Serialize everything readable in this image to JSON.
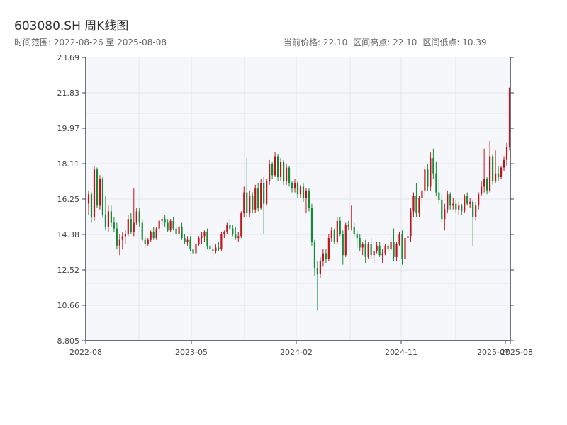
{
  "header": {
    "title": "603080.SH 周K线图",
    "range_label": "时间范围: 2022-08-26 至 2025-08-08",
    "current_price_label": "当前价格: 22.10",
    "high_label": "区间高点: 22.10",
    "low_label": "区间低点: 10.39"
  },
  "colors": {
    "up": "#c0141c",
    "down": "#138a36",
    "plot_bg": "#f6f7fa",
    "grid": "#e1e4ea",
    "axis": "#3c4656"
  },
  "chart_data": {
    "type": "candlestick",
    "title": "603080.SH 周K线图",
    "ylim": [
      8.805,
      23.69
    ],
    "y_ticks": [
      "23.69",
      "21.83",
      "19.97",
      "18.11",
      "16.25",
      "14.38",
      "12.52",
      "10.66",
      "8.805"
    ],
    "x_ticks": [
      "2022-08",
      "2023-05",
      "2024-02",
      "2024-11",
      "2025-07",
      "2025-08"
    ],
    "ohlc": [
      [
        16.0,
        16.7,
        15.4,
        16.5
      ],
      [
        16.5,
        16.6,
        15.0,
        15.3
      ],
      [
        15.3,
        18.0,
        15.1,
        17.8
      ],
      [
        17.8,
        17.9,
        15.8,
        15.9
      ],
      [
        15.9,
        17.5,
        15.7,
        17.3
      ],
      [
        17.3,
        17.4,
        15.3,
        15.4
      ],
      [
        15.4,
        16.4,
        14.6,
        14.8
      ],
      [
        14.8,
        15.9,
        14.5,
        15.6
      ],
      [
        15.6,
        15.9,
        14.8,
        15.0
      ],
      [
        15.0,
        15.3,
        14.5,
        14.7
      ],
      [
        14.7,
        15.0,
        13.6,
        13.8
      ],
      [
        13.8,
        14.4,
        13.3,
        14.1
      ],
      [
        14.1,
        14.5,
        13.6,
        14.3
      ],
      [
        14.3,
        14.6,
        13.9,
        14.4
      ],
      [
        14.4,
        15.4,
        14.3,
        15.2
      ],
      [
        15.2,
        15.5,
        14.4,
        14.5
      ],
      [
        14.5,
        16.8,
        14.3,
        15.0
      ],
      [
        15.0,
        15.8,
        14.9,
        15.6
      ],
      [
        15.6,
        15.8,
        14.8,
        15.0
      ],
      [
        15.0,
        15.2,
        14.0,
        14.1
      ],
      [
        14.1,
        14.3,
        13.7,
        13.9
      ],
      [
        13.9,
        14.2,
        13.8,
        14.1
      ],
      [
        14.1,
        14.6,
        14.0,
        14.5
      ],
      [
        14.5,
        14.8,
        14.1,
        14.2
      ],
      [
        14.2,
        14.8,
        14.1,
        14.7
      ],
      [
        14.7,
        15.2,
        14.5,
        15.1
      ],
      [
        15.1,
        15.3,
        14.9,
        15.2
      ],
      [
        15.2,
        15.4,
        14.8,
        15.0
      ],
      [
        15.0,
        15.2,
        14.5,
        14.6
      ],
      [
        14.6,
        15.2,
        14.5,
        15.1
      ],
      [
        15.1,
        15.3,
        14.6,
        14.7
      ],
      [
        14.7,
        14.9,
        14.2,
        14.4
      ],
      [
        14.4,
        14.9,
        14.2,
        14.8
      ],
      [
        14.8,
        15.0,
        14.1,
        14.2
      ],
      [
        14.2,
        14.4,
        13.9,
        14.0
      ],
      [
        14.0,
        14.3,
        13.8,
        14.1
      ],
      [
        14.1,
        14.3,
        13.5,
        13.6
      ],
      [
        13.6,
        13.9,
        13.2,
        13.4
      ],
      [
        13.4,
        14.0,
        12.9,
        13.9
      ],
      [
        13.9,
        14.3,
        13.8,
        14.2
      ],
      [
        14.2,
        14.5,
        13.9,
        14.3
      ],
      [
        14.3,
        14.6,
        14.0,
        14.5
      ],
      [
        14.5,
        14.7,
        13.6,
        13.8
      ],
      [
        13.8,
        14.1,
        13.5,
        13.6
      ],
      [
        13.6,
        14.0,
        13.2,
        13.5
      ],
      [
        13.5,
        13.9,
        13.4,
        13.7
      ],
      [
        13.7,
        14.0,
        13.5,
        13.6
      ],
      [
        13.6,
        14.5,
        13.5,
        14.4
      ],
      [
        14.4,
        14.6,
        14.2,
        14.5
      ],
      [
        14.5,
        15.0,
        14.4,
        14.9
      ],
      [
        14.9,
        15.2,
        14.6,
        14.7
      ],
      [
        14.7,
        14.9,
        14.3,
        14.4
      ],
      [
        14.4,
        14.8,
        14.1,
        14.2
      ],
      [
        14.2,
        14.5,
        14.0,
        14.3
      ],
      [
        14.3,
        15.6,
        14.2,
        15.5
      ],
      [
        15.5,
        16.9,
        15.3,
        16.6
      ],
      [
        16.6,
        18.4,
        15.3,
        15.5
      ],
      [
        15.5,
        16.7,
        15.3,
        16.4
      ],
      [
        16.4,
        16.6,
        15.5,
        15.7
      ],
      [
        15.7,
        17.0,
        15.5,
        16.8
      ],
      [
        16.8,
        17.1,
        15.6,
        15.8
      ],
      [
        15.8,
        17.3,
        15.7,
        17.1
      ],
      [
        17.1,
        17.4,
        14.4,
        16.0
      ],
      [
        16.0,
        17.3,
        15.9,
        17.2
      ],
      [
        17.2,
        18.3,
        17.0,
        18.1
      ],
      [
        18.1,
        18.2,
        17.3,
        17.5
      ],
      [
        17.5,
        18.7,
        17.4,
        18.5
      ],
      [
        18.5,
        18.6,
        17.2,
        17.4
      ],
      [
        17.4,
        18.4,
        17.2,
        18.2
      ],
      [
        18.2,
        18.3,
        17.0,
        17.2
      ],
      [
        17.2,
        18.1,
        17.0,
        17.9
      ],
      [
        17.9,
        18.0,
        16.9,
        17.1
      ],
      [
        17.1,
        17.2,
        16.6,
        16.8
      ],
      [
        16.8,
        17.3,
        16.6,
        17.1
      ],
      [
        17.1,
        17.2,
        16.3,
        16.5
      ],
      [
        16.5,
        17.0,
        16.3,
        16.9
      ],
      [
        16.9,
        17.1,
        16.1,
        16.3
      ],
      [
        16.3,
        16.8,
        15.5,
        16.7
      ],
      [
        16.7,
        16.8,
        15.6,
        15.8
      ],
      [
        15.8,
        16.0,
        13.8,
        14.0
      ],
      [
        14.0,
        14.1,
        12.2,
        12.6
      ],
      [
        12.6,
        13.0,
        10.39,
        12.3
      ],
      [
        12.3,
        13.2,
        12.1,
        13.0
      ],
      [
        13.0,
        13.6,
        12.7,
        13.4
      ],
      [
        13.4,
        13.6,
        12.9,
        13.1
      ],
      [
        13.1,
        14.4,
        13.0,
        14.2
      ],
      [
        14.2,
        14.8,
        14.0,
        14.6
      ],
      [
        14.6,
        14.7,
        13.9,
        14.0
      ],
      [
        14.0,
        15.3,
        13.9,
        15.1
      ],
      [
        15.1,
        15.3,
        14.3,
        14.4
      ],
      [
        14.4,
        14.6,
        12.8,
        13.3
      ],
      [
        13.3,
        15.0,
        13.2,
        14.9
      ],
      [
        14.9,
        15.1,
        14.6,
        14.8
      ],
      [
        14.8,
        15.9,
        14.6,
        14.8
      ],
      [
        14.8,
        15.0,
        14.3,
        14.4
      ],
      [
        14.4,
        14.6,
        13.7,
        14.2
      ],
      [
        14.2,
        14.4,
        13.5,
        13.7
      ],
      [
        13.7,
        14.0,
        13.3,
        13.9
      ],
      [
        13.9,
        14.1,
        12.9,
        13.2
      ],
      [
        13.2,
        14.0,
        13.1,
        13.9
      ],
      [
        13.9,
        14.2,
        13.1,
        13.3
      ],
      [
        13.3,
        13.6,
        12.9,
        13.5
      ],
      [
        13.5,
        14.0,
        13.4,
        13.8
      ],
      [
        13.8,
        14.0,
        13.2,
        13.3
      ],
      [
        13.3,
        13.6,
        12.9,
        13.4
      ],
      [
        13.4,
        13.9,
        13.3,
        13.8
      ],
      [
        13.8,
        14.0,
        13.5,
        13.6
      ],
      [
        13.6,
        14.2,
        13.5,
        14.0
      ],
      [
        14.0,
        14.7,
        13.0,
        13.2
      ],
      [
        13.2,
        14.0,
        13.0,
        13.9
      ],
      [
        13.9,
        14.5,
        13.8,
        14.4
      ],
      [
        14.4,
        14.6,
        12.8,
        13.1
      ],
      [
        13.1,
        14.3,
        12.8,
        14.2
      ],
      [
        14.2,
        14.5,
        13.6,
        14.3
      ],
      [
        14.3,
        15.8,
        14.0,
        15.6
      ],
      [
        15.6,
        16.6,
        15.3,
        16.4
      ],
      [
        16.4,
        17.1,
        15.3,
        15.5
      ],
      [
        15.5,
        16.4,
        15.3,
        16.3
      ],
      [
        16.3,
        16.8,
        15.9,
        16.7
      ],
      [
        16.7,
        18.0,
        16.5,
        17.8
      ],
      [
        17.8,
        18.1,
        16.7,
        16.9
      ],
      [
        16.9,
        18.7,
        16.7,
        18.4
      ],
      [
        18.4,
        18.9,
        17.3,
        17.6
      ],
      [
        17.6,
        18.2,
        16.4,
        16.6
      ],
      [
        16.6,
        17.3,
        16.0,
        16.2
      ],
      [
        16.2,
        16.5,
        15.0,
        15.2
      ],
      [
        15.2,
        16.0,
        14.6,
        15.7
      ],
      [
        15.7,
        16.7,
        15.5,
        16.5
      ],
      [
        16.5,
        16.6,
        15.7,
        15.9
      ],
      [
        15.9,
        16.3,
        15.7,
        16.0
      ],
      [
        16.0,
        16.2,
        15.5,
        15.7
      ],
      [
        15.7,
        16.1,
        15.4,
        15.9
      ],
      [
        15.9,
        16.0,
        15.4,
        15.6
      ],
      [
        15.6,
        16.5,
        15.5,
        16.4
      ],
      [
        16.4,
        16.6,
        15.9,
        16.0
      ],
      [
        16.0,
        16.3,
        15.8,
        16.1
      ],
      [
        16.1,
        16.2,
        13.8,
        15.3
      ],
      [
        15.3,
        16.1,
        15.1,
        15.9
      ],
      [
        15.9,
        16.6,
        15.7,
        16.5
      ],
      [
        16.5,
        17.2,
        16.4,
        16.9
      ],
      [
        16.9,
        18.9,
        16.6,
        17.3
      ],
      [
        17.3,
        17.4,
        16.5,
        16.7
      ],
      [
        16.7,
        19.3,
        16.6,
        18.5
      ],
      [
        18.5,
        18.6,
        17.0,
        17.2
      ],
      [
        17.2,
        18.8,
        17.1,
        17.6
      ],
      [
        17.6,
        18.0,
        17.2,
        17.4
      ],
      [
        17.4,
        18.0,
        17.3,
        17.9
      ],
      [
        17.9,
        18.5,
        17.7,
        18.3
      ],
      [
        18.3,
        19.2,
        18.0,
        19.0
      ],
      [
        19.0,
        22.1,
        18.8,
        22.1
      ]
    ]
  }
}
